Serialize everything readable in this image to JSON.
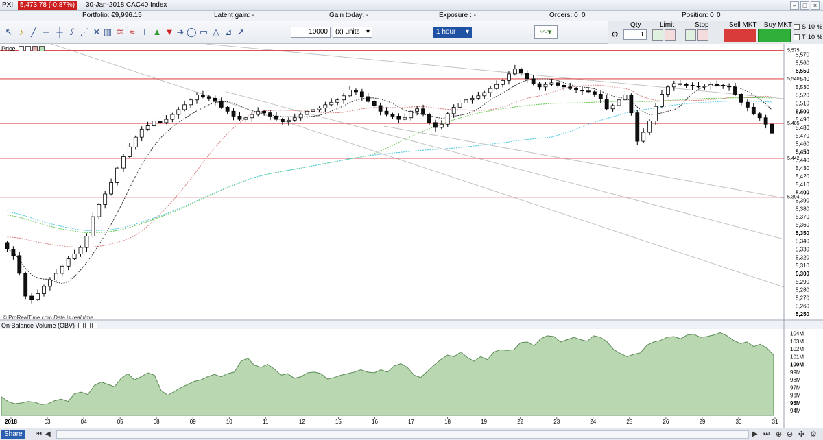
{
  "window": {
    "quote_badge": "5,473.78 (-0.87%)",
    "title": "30-Jan-2018 CAC40 Index",
    "app_label": "PXI"
  },
  "info": {
    "portfolio": "Portfolio: €9,996.15",
    "latent": "Latent gain: -",
    "gain_today": "Gain today: -",
    "exposure": "Exposure : -",
    "orders": "Orders: 0",
    "orders_ratio": "0",
    "position": "Position: 0",
    "position_ratio": "0"
  },
  "toolbar": {
    "quantity": "10000",
    "units": "(x) units",
    "timeframe": "1 hour"
  },
  "trade": {
    "qty_label": "Qty",
    "qty_value": "1",
    "limit_label": "Limit",
    "stop_label": "Stop",
    "sell_label": "Sell MKT",
    "buy_label": "Buy MKT",
    "s_label": "S",
    "t_label": "T",
    "pct": "%",
    "ten": "10"
  },
  "colors": {
    "up_candle": "#ffffff",
    "down_candle": "#111111",
    "support_line": "#e05050",
    "obv_fill": "#b9d8b1",
    "ma_fast": "#333333",
    "ma_mid": "#d98080",
    "ma_slow1": "#67c64e",
    "ma_slow2": "#4cc7dd"
  },
  "price_panel": {
    "title": "Price",
    "credit_brand": "© ProRealTime.com",
    "credit_note": "Data is real time"
  },
  "obv_panel": {
    "title": "On Balance Volume (OBV)"
  },
  "footer": {
    "share": "Share"
  },
  "chart_data": [
    {
      "type": "candlestick",
      "title": "30-Jan-2018 CAC40 Index",
      "timeframe": "1 hour",
      "x_tick_labels": [
        "2018",
        "03",
        "04",
        "05",
        "08",
        "09",
        "10",
        "11",
        "12",
        "15",
        "16",
        "17",
        "18",
        "19",
        "22",
        "23",
        "24",
        "25",
        "26",
        "29",
        "30",
        "31"
      ],
      "y_tick_labels": [
        "5,250",
        "5,260",
        "5,270",
        "5,280",
        "5,290",
        "5,300",
        "5,310",
        "5,320",
        "5,330",
        "5,340",
        "5,350",
        "5,360",
        "5,370",
        "5,380",
        "5,390",
        "5,400",
        "5,410",
        "5,420",
        "5,430",
        "5,440",
        "5,450",
        "5,460",
        "5,470",
        "5,480",
        "5,490",
        "5,500",
        "5,510",
        "5,520",
        "5,530",
        "5,540",
        "5,550",
        "5,560",
        "5,570"
      ],
      "ylim": [
        5245,
        5578
      ],
      "horizontal_levels": [
        {
          "value": 5575,
          "label": "5,575"
        },
        {
          "value": 5540,
          "label": "5,540"
        },
        {
          "value": 5485,
          "label": "5,485"
        },
        {
          "value": 5442,
          "label": "5,442"
        },
        {
          "value": 5394,
          "label": "5,394"
        }
      ],
      "closes": [
        5330,
        5322,
        5300,
        5272,
        5268,
        5275,
        5284,
        5292,
        5300,
        5309,
        5318,
        5324,
        5332,
        5346,
        5370,
        5385,
        5398,
        5412,
        5430,
        5444,
        5456,
        5468,
        5478,
        5482,
        5488,
        5486,
        5490,
        5496,
        5502,
        5508,
        5514,
        5520,
        5518,
        5516,
        5512,
        5505,
        5500,
        5494,
        5490,
        5492,
        5496,
        5500,
        5498,
        5494,
        5490,
        5487,
        5489,
        5492,
        5496,
        5500,
        5502,
        5504,
        5508,
        5511,
        5514,
        5519,
        5526,
        5524,
        5518,
        5512,
        5507,
        5500,
        5496,
        5494,
        5490,
        5492,
        5500,
        5503,
        5496,
        5486,
        5480,
        5484,
        5497,
        5505,
        5510,
        5514,
        5516,
        5519,
        5523,
        5528,
        5533,
        5538,
        5546,
        5552,
        5547,
        5540,
        5534,
        5530,
        5533,
        5535,
        5532,
        5530,
        5528,
        5526,
        5525,
        5524,
        5521,
        5515,
        5503,
        5507,
        5514,
        5520,
        5498,
        5463,
        5474,
        5488,
        5506,
        5521,
        5530,
        5534,
        5533,
        5532,
        5531,
        5530,
        5531,
        5533,
        5532,
        5531,
        5530,
        5521,
        5511,
        5505,
        5497,
        5492,
        5484,
        5473
      ]
    },
    {
      "type": "area",
      "title": "On Balance Volume (OBV)",
      "y_tick_labels": [
        "94M",
        "95M",
        "96M",
        "97M",
        "98M",
        "99M",
        "100M",
        "101M",
        "102M",
        "103M",
        "104M"
      ],
      "ylim": [
        93.4,
        104.4
      ],
      "values": [
        95.8,
        95.2,
        94.9,
        95.0,
        95.2,
        95.1,
        94.8,
        94.9,
        95.3,
        95.5,
        95.2,
        96.2,
        96.4,
        96.1,
        97.3,
        97.7,
        97.4,
        97.1,
        98.2,
        98.8,
        98.0,
        98.4,
        98.9,
        98.6,
        96.6,
        96.0,
        96.5,
        97.0,
        97.4,
        97.8,
        98.0,
        98.4,
        98.7,
        98.4,
        98.8,
        99.0,
        100.4,
        100.8,
        99.9,
        99.6,
        100.0,
        99.4,
        98.6,
        98.8,
        98.2,
        98.4,
        98.9,
        99.0,
        98.8,
        98.1,
        98.3,
        98.6,
        98.8,
        99.0,
        99.3,
        99.0,
        98.9,
        99.3,
        99.0,
        99.8,
        100.1,
        99.6,
        98.6,
        98.3,
        99.1,
        99.9,
        100.6,
        101.2,
        101.0,
        101.6,
        100.9,
        100.4,
        101.0,
        100.6,
        101.6,
        101.9,
        101.8,
        101.9,
        102.8,
        102.9,
        102.4,
        103.3,
        103.7,
        103.6,
        102.9,
        103.2,
        103.5,
        103.2,
        103.0,
        103.7,
        103.5,
        102.9,
        101.9,
        101.4,
        101.0,
        101.3,
        101.5,
        102.5,
        102.9,
        103.1,
        103.5,
        103.6,
        103.3,
        103.8,
        103.9,
        103.5,
        103.6,
        103.8,
        104.1,
        103.7,
        103.1,
        102.7,
        102.9,
        102.3,
        102.6,
        102.1,
        101.2
      ]
    }
  ]
}
